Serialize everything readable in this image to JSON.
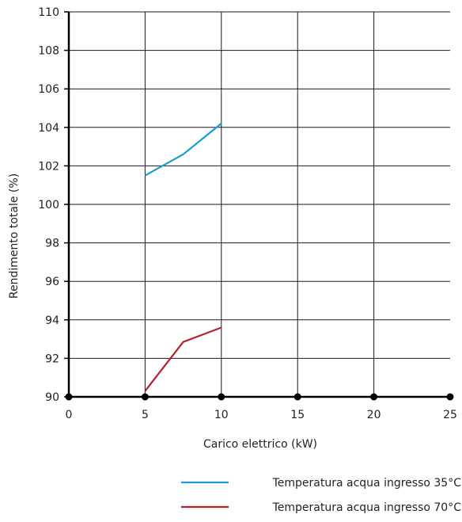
{
  "chart_data": {
    "type": "line",
    "title": "",
    "xlabel": "Carico elettrico (kW)",
    "ylabel": "Rendimento totale (%)",
    "xlim": [
      0,
      25
    ],
    "ylim": [
      90,
      110
    ],
    "xticks": [
      "0",
      "5",
      "10",
      "15",
      "20",
      "25"
    ],
    "yticks": [
      "90",
      "92",
      "94",
      "96",
      "98",
      "100",
      "102",
      "104",
      "106",
      "108",
      "110"
    ],
    "grid": true,
    "legend_position": "bottom-right",
    "series": [
      {
        "name": "Temperatura acqua ingresso 35°C",
        "color": "#1a9bd7",
        "points": [
          [
            5,
            101.5
          ],
          [
            7.5,
            102.6
          ],
          [
            10,
            104.2
          ]
        ]
      },
      {
        "name": "Temperatura acqua ingresso 70°C",
        "color": "#b5202e",
        "points": [
          [
            5,
            90.3
          ],
          [
            7.5,
            92.85
          ],
          [
            10,
            93.6
          ]
        ]
      }
    ]
  }
}
